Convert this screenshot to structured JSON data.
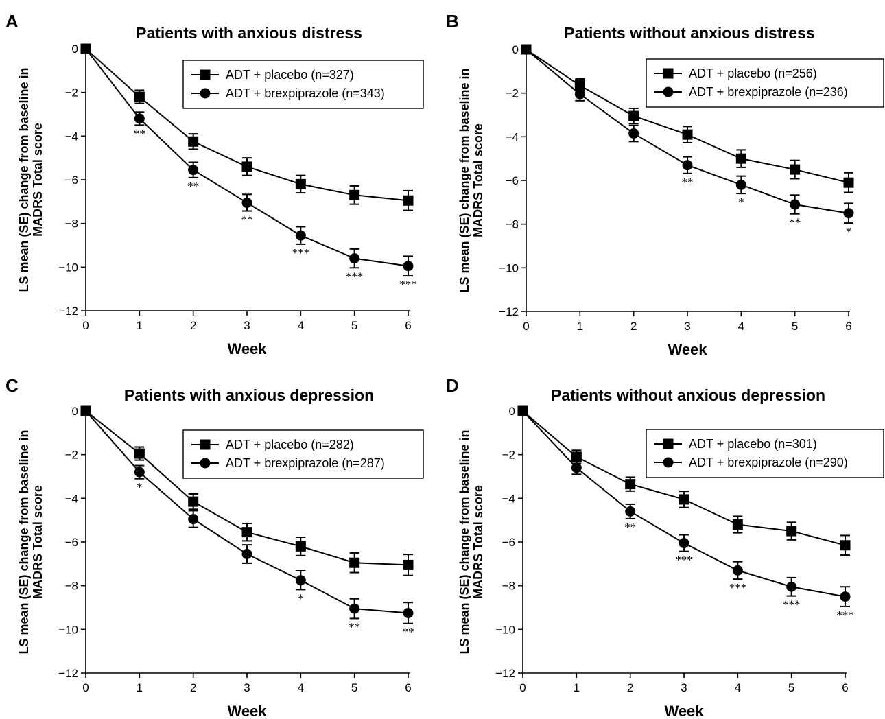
{
  "colors": {
    "series": "#000000",
    "background": "#ffffff"
  },
  "chart_data": [
    {
      "type": "line",
      "panel": "A",
      "title": "Patients with anxious distress",
      "xlabel": "Week",
      "ylabel": [
        "LS mean (SE) change from baseline in",
        "MADRS Total score"
      ],
      "xlim": [
        0,
        6
      ],
      "ylim": [
        -12,
        0
      ],
      "xticks": [
        "0",
        "1",
        "2",
        "3",
        "4",
        "5",
        "6"
      ],
      "yticks": [
        "0",
        "−2",
        "−4",
        "−6",
        "−8",
        "−10",
        "−12"
      ],
      "x": [
        0,
        1,
        2,
        3,
        4,
        5,
        6
      ],
      "legend_position": "top-right",
      "series": [
        {
          "name": "ADT + placebo (n=327)",
          "marker": "square",
          "values": [
            0,
            -2.2,
            -4.25,
            -5.4,
            -6.2,
            -6.7,
            -6.95
          ],
          "se": [
            0,
            0.3,
            0.35,
            0.4,
            0.4,
            0.42,
            0.45
          ]
        },
        {
          "name": "ADT + brexpiprazole (n=343)",
          "marker": "circle",
          "values": [
            0,
            -3.2,
            -5.55,
            -7.05,
            -8.55,
            -9.6,
            -9.95
          ],
          "se": [
            0,
            0.3,
            0.35,
            0.38,
            0.4,
            0.43,
            0.45
          ]
        }
      ],
      "significance": [
        {
          "x": 1,
          "label": "**"
        },
        {
          "x": 2,
          "label": "**"
        },
        {
          "x": 3,
          "label": "**"
        },
        {
          "x": 4,
          "label": "***"
        },
        {
          "x": 5,
          "label": "***"
        },
        {
          "x": 6,
          "label": "***"
        }
      ]
    },
    {
      "type": "line",
      "panel": "B",
      "title": "Patients without anxious distress",
      "xlabel": "Week",
      "ylabel": [
        "LS mean (SE) change from baseline in",
        "MADRS Total score"
      ],
      "xlim": [
        0,
        6
      ],
      "ylim": [
        -12,
        0
      ],
      "xticks": [
        "0",
        "1",
        "2",
        "3",
        "4",
        "5",
        "6"
      ],
      "yticks": [
        "0",
        "−2",
        "−4",
        "−6",
        "−8",
        "−10",
        "−12"
      ],
      "x": [
        0,
        1,
        2,
        3,
        4,
        5,
        6
      ],
      "legend_position": "top-right",
      "series": [
        {
          "name": "ADT + placebo (n=256)",
          "marker": "square",
          "values": [
            0,
            -1.65,
            -3.05,
            -3.9,
            -5.0,
            -5.5,
            -6.1
          ],
          "se": [
            0,
            0.3,
            0.35,
            0.37,
            0.4,
            0.42,
            0.45
          ]
        },
        {
          "name": "ADT + brexpiprazole (n=236)",
          "marker": "circle",
          "values": [
            0,
            -2.05,
            -3.85,
            -5.3,
            -6.2,
            -7.1,
            -7.5
          ],
          "se": [
            0,
            0.3,
            0.37,
            0.38,
            0.4,
            0.43,
            0.45
          ]
        }
      ],
      "significance": [
        {
          "x": 3,
          "label": "**"
        },
        {
          "x": 4,
          "label": "*"
        },
        {
          "x": 5,
          "label": "**"
        },
        {
          "x": 6,
          "label": "*"
        }
      ]
    },
    {
      "type": "line",
      "panel": "C",
      "title": "Patients with anxious depression",
      "xlabel": "Week",
      "ylabel": [
        "LS mean (SE) change from baseline in",
        "MADRS Total score"
      ],
      "xlim": [
        0,
        6
      ],
      "ylim": [
        -12,
        0
      ],
      "xticks": [
        "0",
        "1",
        "2",
        "3",
        "4",
        "5",
        "6"
      ],
      "yticks": [
        "0",
        "−2",
        "−4",
        "−6",
        "−8",
        "−10",
        "−12"
      ],
      "x": [
        0,
        1,
        2,
        3,
        4,
        5,
        6
      ],
      "legend_position": "top-right",
      "series": [
        {
          "name": "ADT + placebo (n=282)",
          "marker": "square",
          "values": [
            0,
            -1.95,
            -4.15,
            -5.55,
            -6.2,
            -6.95,
            -7.05
          ],
          "se": [
            0,
            0.3,
            0.35,
            0.4,
            0.42,
            0.45,
            0.48
          ]
        },
        {
          "name": "ADT + brexpiprazole (n=287)",
          "marker": "circle",
          "values": [
            0,
            -2.8,
            -4.95,
            -6.55,
            -7.75,
            -9.05,
            -9.25
          ],
          "se": [
            0,
            0.3,
            0.38,
            0.42,
            0.43,
            0.45,
            0.48
          ]
        }
      ],
      "significance": [
        {
          "x": 1,
          "label": "*"
        },
        {
          "x": 4,
          "label": "*"
        },
        {
          "x": 5,
          "label": "**"
        },
        {
          "x": 6,
          "label": "**"
        }
      ]
    },
    {
      "type": "line",
      "panel": "D",
      "title": "Patients without anxious depression",
      "xlabel": "Week",
      "ylabel": [
        "LS mean (SE) change from baseline in",
        "MADRS Total score"
      ],
      "xlim": [
        0,
        6
      ],
      "ylim": [
        -12,
        0
      ],
      "xticks": [
        "0",
        "1",
        "2",
        "3",
        "4",
        "5",
        "6"
      ],
      "yticks": [
        "0",
        "−2",
        "−4",
        "−6",
        "−8",
        "−10",
        "−12"
      ],
      "x": [
        0,
        1,
        2,
        3,
        4,
        5,
        6
      ],
      "legend_position": "top-right",
      "series": [
        {
          "name": "ADT + placebo (n=301)",
          "marker": "square",
          "values": [
            0,
            -2.1,
            -3.35,
            -4.05,
            -5.2,
            -5.5,
            -6.15
          ],
          "se": [
            0,
            0.3,
            0.32,
            0.37,
            0.38,
            0.4,
            0.45
          ]
        },
        {
          "name": "ADT + brexpiprazole (n=290)",
          "marker": "circle",
          "values": [
            0,
            -2.6,
            -4.6,
            -6.05,
            -7.3,
            -8.05,
            -8.5
          ],
          "se": [
            0,
            0.3,
            0.33,
            0.38,
            0.4,
            0.42,
            0.45
          ]
        }
      ],
      "significance": [
        {
          "x": 2,
          "label": "**"
        },
        {
          "x": 3,
          "label": "***"
        },
        {
          "x": 4,
          "label": "***"
        },
        {
          "x": 5,
          "label": "***"
        },
        {
          "x": 6,
          "label": "***"
        }
      ]
    }
  ]
}
